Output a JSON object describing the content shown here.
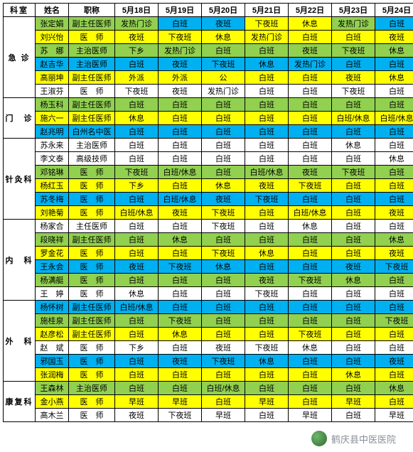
{
  "colors": {
    "yellow": "#ffff00",
    "green": "#92d050",
    "blue": "#00b0f0",
    "white": "#ffffff"
  },
  "headers": {
    "dept": "科室",
    "name": "姓名",
    "title": "职称",
    "days": [
      "5月18日",
      "5月19日",
      "5月20日",
      "5月21日",
      "5月22日",
      "5月23日",
      "5月24日"
    ]
  },
  "departments": [
    {
      "name": "急 诊",
      "rows": [
        {
          "name": "张定娟",
          "title": "副主任医师",
          "cells": [
            [
              "发热门诊",
              "green"
            ],
            [
              "白班",
              "blue"
            ],
            [
              "夜班",
              "blue"
            ],
            [
              "下夜班",
              "yellow"
            ],
            [
              "休息",
              "yellow"
            ],
            [
              "发热门诊",
              "green"
            ],
            [
              "白班",
              "blue"
            ]
          ]
        },
        {
          "name": "刘兴怡",
          "title": "医　师",
          "cells": [
            [
              "夜班",
              "yellow"
            ],
            [
              "下夜班",
              "yellow"
            ],
            [
              "休息",
              "yellow"
            ],
            [
              "发热门诊",
              "yellow"
            ],
            [
              "白班",
              "yellow"
            ],
            [
              "白班",
              "yellow"
            ],
            [
              "夜班",
              "yellow"
            ]
          ]
        },
        {
          "name": "苏　娜",
          "title": "主治医师",
          "cells": [
            [
              "下乡",
              "green"
            ],
            [
              "发热门诊",
              "green"
            ],
            [
              "白班",
              "green"
            ],
            [
              "白班",
              "green"
            ],
            [
              "夜班",
              "green"
            ],
            [
              "下夜班",
              "green"
            ],
            [
              "休息",
              "green"
            ]
          ]
        },
        {
          "name": "赵吉华",
          "title": "主治医师",
          "cells": [
            [
              "白班",
              "blue"
            ],
            [
              "夜班",
              "blue"
            ],
            [
              "下夜班",
              "blue"
            ],
            [
              "休息",
              "blue"
            ],
            [
              "发热门诊",
              "blue"
            ],
            [
              "白班",
              "blue"
            ],
            [
              "白班",
              "blue"
            ]
          ]
        },
        {
          "name": "高丽坤",
          "title": "副主任医师",
          "cells": [
            [
              "外派",
              "yellow"
            ],
            [
              "外派",
              "yellow"
            ],
            [
              "公",
              "yellow"
            ],
            [
              "白班",
              "yellow"
            ],
            [
              "白班",
              "yellow"
            ],
            [
              "夜班",
              "yellow"
            ],
            [
              "休息",
              "yellow"
            ]
          ]
        },
        {
          "name": "王淑芬",
          "title": "医　师",
          "cells": [
            [
              "下夜班",
              "white"
            ],
            [
              "夜班",
              "white"
            ],
            [
              "发热门诊",
              "white"
            ],
            [
              "白班",
              "white"
            ],
            [
              "白班",
              "white"
            ],
            [
              "下夜班",
              "white"
            ],
            [
              "白班",
              "white"
            ]
          ]
        }
      ]
    },
    {
      "name": "门　诊",
      "rows": [
        {
          "name": "杨玉科",
          "title": "副主任医师",
          "cells": [
            [
              "白班",
              "green"
            ],
            [
              "白班",
              "green"
            ],
            [
              "白班",
              "green"
            ],
            [
              "白班",
              "green"
            ],
            [
              "白班",
              "green"
            ],
            [
              "白班",
              "green"
            ],
            [
              "白班",
              "green"
            ]
          ]
        },
        {
          "name": "施六一",
          "title": "副主任医师",
          "cells": [
            [
              "休息",
              "yellow"
            ],
            [
              "白班",
              "yellow"
            ],
            [
              "白班",
              "yellow"
            ],
            [
              "白班",
              "yellow"
            ],
            [
              "白班",
              "yellow"
            ],
            [
              "白班/休息",
              "yellow"
            ],
            [
              "白班/休息",
              "yellow"
            ]
          ]
        },
        {
          "name": "赵兆明",
          "title": "白州名中医",
          "cells": [
            [
              "白班",
              "blue"
            ],
            [
              "白班",
              "blue"
            ],
            [
              "白班",
              "blue"
            ],
            [
              "白班",
              "blue"
            ],
            [
              "白班",
              "blue"
            ],
            [
              "白班",
              "blue"
            ],
            [
              "白班",
              "blue"
            ]
          ]
        }
      ]
    },
    {
      "name": "针灸科",
      "rows": [
        {
          "name": "苏永来",
          "title": "主治医师",
          "cells": [
            [
              "白班",
              "white"
            ],
            [
              "白班",
              "white"
            ],
            [
              "白班",
              "white"
            ],
            [
              "白班",
              "white"
            ],
            [
              "白班",
              "white"
            ],
            [
              "休息",
              "white"
            ],
            [
              "白班",
              "white"
            ]
          ]
        },
        {
          "name": "李文泰",
          "title": "高级技师",
          "cells": [
            [
              "白班",
              "white"
            ],
            [
              "白班",
              "white"
            ],
            [
              "白班",
              "white"
            ],
            [
              "白班",
              "white"
            ],
            [
              "白班",
              "white"
            ],
            [
              "白班",
              "white"
            ],
            [
              "休息",
              "white"
            ]
          ]
        },
        {
          "name": "邓铭琳",
          "title": "医　师",
          "cells": [
            [
              "下夜班",
              "green"
            ],
            [
              "白班/休息",
              "green"
            ],
            [
              "白班",
              "green"
            ],
            [
              "白班/休息",
              "green"
            ],
            [
              "夜班",
              "green"
            ],
            [
              "下夜班",
              "green"
            ],
            [
              "白班",
              "green"
            ]
          ]
        },
        {
          "name": "杨红玉",
          "title": "医　师",
          "cells": [
            [
              "下乡",
              "yellow"
            ],
            [
              "白班",
              "yellow"
            ],
            [
              "休息",
              "yellow"
            ],
            [
              "夜班",
              "yellow"
            ],
            [
              "下夜班",
              "yellow"
            ],
            [
              "白班",
              "yellow"
            ],
            [
              "白班",
              "yellow"
            ]
          ]
        },
        {
          "name": "苏冬梅",
          "title": "医　师",
          "cells": [
            [
              "白班",
              "blue"
            ],
            [
              "白班/休息",
              "blue"
            ],
            [
              "夜班",
              "blue"
            ],
            [
              "下夜班",
              "blue"
            ],
            [
              "白班",
              "blue"
            ],
            [
              "白班",
              "blue"
            ],
            [
              "白班",
              "blue"
            ]
          ]
        },
        {
          "name": "刘艳菊",
          "title": "医　师",
          "cells": [
            [
              "白班/休息",
              "yellow"
            ],
            [
              "夜班",
              "yellow"
            ],
            [
              "下夜班",
              "yellow"
            ],
            [
              "白班",
              "yellow"
            ],
            [
              "白班/休息",
              "yellow"
            ],
            [
              "白班",
              "yellow"
            ],
            [
              "夜班",
              "yellow"
            ]
          ]
        }
      ]
    },
    {
      "name": "内　科",
      "rows": [
        {
          "name": "杨家合",
          "title": "主任医师",
          "cells": [
            [
              "白班",
              "white"
            ],
            [
              "白班",
              "white"
            ],
            [
              "下夜班",
              "white"
            ],
            [
              "白班",
              "white"
            ],
            [
              "休息",
              "white"
            ],
            [
              "白班",
              "white"
            ],
            [
              "白班",
              "white"
            ]
          ]
        },
        {
          "name": "段晓祥",
          "title": "副主任医师",
          "cells": [
            [
              "白班",
              "green"
            ],
            [
              "休息",
              "green"
            ],
            [
              "白班",
              "green"
            ],
            [
              "白班",
              "green"
            ],
            [
              "白班",
              "green"
            ],
            [
              "白班",
              "green"
            ],
            [
              "休息",
              "green"
            ]
          ]
        },
        {
          "name": "罗金花",
          "title": "医　师",
          "cells": [
            [
              "白班",
              "yellow"
            ],
            [
              "白班",
              "yellow"
            ],
            [
              "下夜班",
              "yellow"
            ],
            [
              "休息",
              "yellow"
            ],
            [
              "白班",
              "yellow"
            ],
            [
              "白班",
              "yellow"
            ],
            [
              "夜班",
              "yellow"
            ]
          ]
        },
        {
          "name": "王永会",
          "title": "医　师",
          "cells": [
            [
              "夜班",
              "blue"
            ],
            [
              "下夜班",
              "blue"
            ],
            [
              "休息",
              "blue"
            ],
            [
              "白班",
              "blue"
            ],
            [
              "白班",
              "blue"
            ],
            [
              "夜班",
              "blue"
            ],
            [
              "下夜班",
              "blue"
            ]
          ]
        },
        {
          "name": "杨满艇",
          "title": "医　师",
          "cells": [
            [
              "白班",
              "green"
            ],
            [
              "白班",
              "green"
            ],
            [
              "白班",
              "green"
            ],
            [
              "夜班",
              "green"
            ],
            [
              "下夜班",
              "green"
            ],
            [
              "休息",
              "green"
            ],
            [
              "白班",
              "green"
            ]
          ]
        },
        {
          "name": "王　婷",
          "title": "医　师",
          "cells": [
            [
              "休息",
              "white"
            ],
            [
              "白班",
              "white"
            ],
            [
              "白班",
              "white"
            ],
            [
              "下夜班",
              "white"
            ],
            [
              "白班",
              "white"
            ],
            [
              "白班",
              "white"
            ],
            [
              "白班",
              "white"
            ]
          ]
        }
      ]
    },
    {
      "name": "外　科",
      "rows": [
        {
          "name": "杨怀树",
          "title": "副主任医师",
          "cells": [
            [
              "白班/休息",
              "blue"
            ],
            [
              "白班",
              "blue"
            ],
            [
              "白班",
              "blue"
            ],
            [
              "白班",
              "blue"
            ],
            [
              "白班",
              "blue"
            ],
            [
              "白班",
              "blue"
            ],
            [
              "白班",
              "blue"
            ]
          ]
        },
        {
          "name": "施桂泉",
          "title": "副主任医师",
          "cells": [
            [
              "白班",
              "green"
            ],
            [
              "下夜班",
              "green"
            ],
            [
              "白班",
              "green"
            ],
            [
              "白班",
              "green"
            ],
            [
              "白班",
              "green"
            ],
            [
              "白班",
              "green"
            ],
            [
              "下夜班",
              "green"
            ]
          ]
        },
        {
          "name": "赵彦松",
          "title": "副主任医师",
          "cells": [
            [
              "白班",
              "yellow"
            ],
            [
              "休息",
              "yellow"
            ],
            [
              "白班",
              "yellow"
            ],
            [
              "白班",
              "yellow"
            ],
            [
              "下夜班",
              "yellow"
            ],
            [
              "白班",
              "yellow"
            ],
            [
              "白班",
              "yellow"
            ]
          ]
        },
        {
          "name": "赵　斌",
          "title": "医　师",
          "cells": [
            [
              "下乡",
              "white"
            ],
            [
              "白班",
              "white"
            ],
            [
              "夜班",
              "white"
            ],
            [
              "下夜班",
              "white"
            ],
            [
              "休息",
              "white"
            ],
            [
              "白班",
              "white"
            ],
            [
              "白班",
              "white"
            ]
          ]
        },
        {
          "name": "邪国玉",
          "title": "医　师",
          "cells": [
            [
              "白班",
              "blue"
            ],
            [
              "夜班",
              "blue"
            ],
            [
              "下夜班",
              "blue"
            ],
            [
              "休息",
              "blue"
            ],
            [
              "白班",
              "blue"
            ],
            [
              "白班",
              "blue"
            ],
            [
              "夜班",
              "blue"
            ]
          ]
        },
        {
          "name": "张润梅",
          "title": "医　师",
          "cells": [
            [
              "白班",
              "yellow"
            ],
            [
              "白班",
              "yellow"
            ],
            [
              "白班",
              "yellow"
            ],
            [
              "白班",
              "yellow"
            ],
            [
              "白班",
              "yellow"
            ],
            [
              "休息",
              "yellow"
            ],
            [
              "白班",
              "yellow"
            ]
          ]
        }
      ]
    },
    {
      "name": "康复科",
      "rows": [
        {
          "name": "王森林",
          "title": "主治医师",
          "cells": [
            [
              "白班",
              "green"
            ],
            [
              "白班",
              "green"
            ],
            [
              "白班/休息",
              "green"
            ],
            [
              "白班",
              "green"
            ],
            [
              "白班",
              "green"
            ],
            [
              "白班",
              "green"
            ],
            [
              "休息",
              "green"
            ]
          ]
        },
        {
          "name": "金小燕",
          "title": "医　师",
          "cells": [
            [
              "早班",
              "yellow"
            ],
            [
              "早班",
              "yellow"
            ],
            [
              "白班",
              "yellow"
            ],
            [
              "早班",
              "yellow"
            ],
            [
              "白班",
              "yellow"
            ],
            [
              "早班",
              "yellow"
            ],
            [
              "白班",
              "yellow"
            ]
          ]
        },
        {
          "name": "高木兰",
          "title": "医　师",
          "cells": [
            [
              "夜班",
              "white"
            ],
            [
              "下夜班",
              "white"
            ],
            [
              "早班",
              "white"
            ],
            [
              "白班",
              "white"
            ],
            [
              "早班",
              "white"
            ],
            [
              "白班",
              "white"
            ],
            [
              "早班",
              "white"
            ]
          ]
        }
      ]
    }
  ],
  "footer": "鹤庆县中医医院"
}
